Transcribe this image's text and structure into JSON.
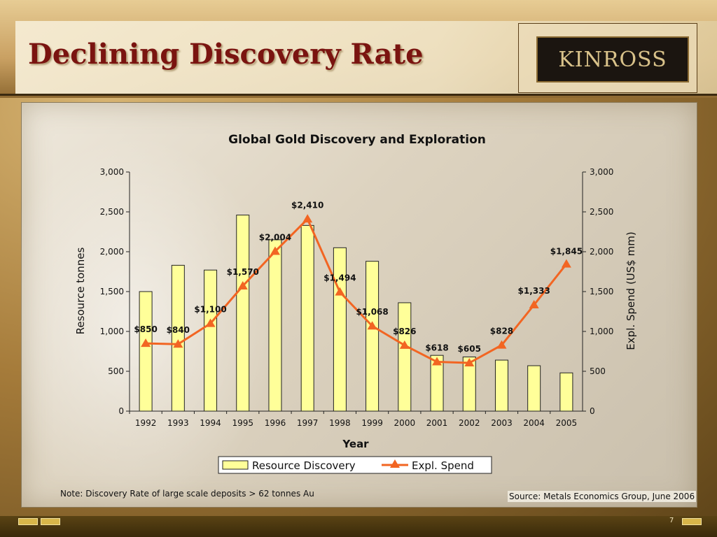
{
  "slide": {
    "title": "Declining Discovery Rate",
    "logo_text": "KINROSS",
    "note": "Note: Discovery Rate of large scale deposits > 62 tonnes Au",
    "source": "Source: Metals Economics Group, June 2006",
    "page_number": "7"
  },
  "colors": {
    "bar_fill": "#ffff99",
    "line": "#f26522",
    "title": "#7a1410"
  },
  "chart_data": {
    "type": "bar",
    "title": "Global Gold Discovery and Exploration",
    "xlabel": "Year",
    "ylabel": "Resource tonnes",
    "y2label": "Expl. Spend (US$ mm)",
    "ylim": [
      0,
      3000
    ],
    "y2lim": [
      0,
      3000
    ],
    "yticks": [
      "0",
      "500",
      "1,000",
      "1,500",
      "2,000",
      "2,500",
      "3,000"
    ],
    "y2ticks": [
      "0",
      "500",
      "1,000",
      "1,500",
      "2,000",
      "2,500",
      "3,000"
    ],
    "categories": [
      "1992",
      "1993",
      "1994",
      "1995",
      "1996",
      "1997",
      "1998",
      "1999",
      "2000",
      "2001",
      "2002",
      "2003",
      "2004",
      "2005"
    ],
    "series": [
      {
        "name": "Resource Discovery",
        "type": "bar",
        "axis": "left",
        "values": [
          1500,
          1830,
          1770,
          2460,
          2150,
          2330,
          2050,
          1880,
          1360,
          700,
          680,
          640,
          570,
          480
        ]
      },
      {
        "name": "Expl. Spend",
        "type": "line",
        "axis": "right",
        "values": [
          850,
          840,
          1100,
          1570,
          2004,
          2410,
          1494,
          1068,
          826,
          618,
          605,
          828,
          1333,
          1845
        ],
        "labels": [
          "$850",
          "$840",
          "$1,100",
          "$1,570",
          "$2,004",
          "$2,410",
          "$1,494",
          "$1,068",
          "$826",
          "$618",
          "$605",
          "$828",
          "$1,333",
          "$1,845"
        ]
      }
    ],
    "legend": "bottom",
    "grid": false
  }
}
